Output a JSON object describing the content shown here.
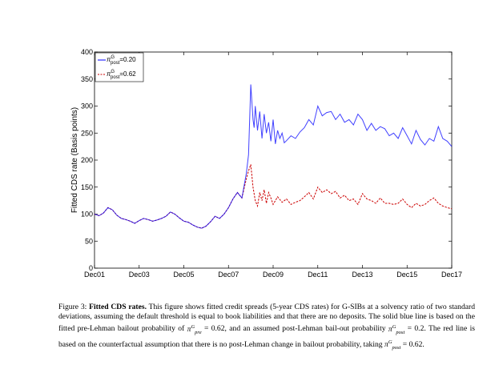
{
  "chart_data": {
    "type": "line",
    "title": "",
    "xlabel": "",
    "ylabel": "Fitted CDS rate (Basis points)",
    "xlim": [
      2001.0,
      2017.0
    ],
    "ylim": [
      0,
      400
    ],
    "yticks": [
      0,
      50,
      100,
      150,
      200,
      250,
      300,
      350,
      400
    ],
    "xtick_positions": [
      2001.0,
      2003.0,
      2005.0,
      2007.0,
      2009.0,
      2011.0,
      2013.0,
      2015.0,
      2017.0
    ],
    "xtick_labels": [
      "Dec01",
      "Dec03",
      "Dec05",
      "Dec07",
      "Dec09",
      "Dec11",
      "Dec13",
      "Dec15",
      "Dec17"
    ],
    "grid": false,
    "legend": "top-left",
    "series": [
      {
        "name": "π_post^G =0.20",
        "legend_pi": "π",
        "legend_sup": "G",
        "legend_sub": "post",
        "legend_val": "=0.20",
        "color": "#0000ff",
        "style": "solid",
        "x": [
          2001.0,
          2001.2,
          2001.4,
          2001.6,
          2001.8,
          2002.0,
          2002.2,
          2002.4,
          2002.6,
          2002.8,
          2003.0,
          2003.2,
          2003.4,
          2003.6,
          2003.8,
          2004.0,
          2004.2,
          2004.4,
          2004.6,
          2004.8,
          2005.0,
          2005.2,
          2005.4,
          2005.6,
          2005.8,
          2006.0,
          2006.2,
          2006.4,
          2006.6,
          2006.8,
          2007.0,
          2007.2,
          2007.4,
          2007.6,
          2007.8,
          2007.9,
          2008.0,
          2008.1,
          2008.15,
          2008.2,
          2008.3,
          2008.4,
          2008.5,
          2008.6,
          2008.7,
          2008.8,
          2008.9,
          2009.0,
          2009.1,
          2009.2,
          2009.3,
          2009.4,
          2009.5,
          2009.6,
          2009.8,
          2010.0,
          2010.2,
          2010.4,
          2010.6,
          2010.8,
          2011.0,
          2011.2,
          2011.4,
          2011.6,
          2011.8,
          2012.0,
          2012.2,
          2012.4,
          2012.6,
          2012.8,
          2013.0,
          2013.2,
          2013.4,
          2013.6,
          2013.8,
          2014.0,
          2014.2,
          2014.4,
          2014.6,
          2014.8,
          2015.0,
          2015.2,
          2015.4,
          2015.6,
          2015.8,
          2016.0,
          2016.2,
          2016.4,
          2016.6,
          2016.8,
          2017.0
        ],
        "y": [
          100,
          97,
          102,
          112,
          108,
          98,
          92,
          90,
          87,
          83,
          88,
          92,
          90,
          87,
          89,
          92,
          96,
          104,
          100,
          93,
          87,
          85,
          80,
          76,
          74,
          78,
          86,
          96,
          92,
          100,
          112,
          128,
          140,
          130,
          175,
          210,
          340,
          275,
          260,
          300,
          255,
          290,
          240,
          285,
          250,
          270,
          235,
          275,
          230,
          255,
          240,
          250,
          232,
          236,
          245,
          240,
          252,
          260,
          275,
          265,
          300,
          282,
          288,
          290,
          275,
          285,
          270,
          275,
          265,
          285,
          275,
          255,
          268,
          255,
          262,
          258,
          245,
          250,
          240,
          260,
          245,
          230,
          255,
          238,
          228,
          240,
          235,
          262,
          240,
          235,
          225
        ],
        "endpoint": [
          2017.0,
          225
        ]
      },
      {
        "name": "π_post^G =0.62",
        "legend_pi": "π",
        "legend_sup": "G",
        "legend_sub": "post",
        "legend_val": "=0.62",
        "color": "#cc0000",
        "style": "dashed",
        "x": [
          2001.0,
          2001.2,
          2001.4,
          2001.6,
          2001.8,
          2002.0,
          2002.2,
          2002.4,
          2002.6,
          2002.8,
          2003.0,
          2003.2,
          2003.4,
          2003.6,
          2003.8,
          2004.0,
          2004.2,
          2004.4,
          2004.6,
          2004.8,
          2005.0,
          2005.2,
          2005.4,
          2005.6,
          2005.8,
          2006.0,
          2006.2,
          2006.4,
          2006.6,
          2006.8,
          2007.0,
          2007.2,
          2007.4,
          2007.6,
          2007.8,
          2007.9,
          2008.0,
          2008.1,
          2008.2,
          2008.3,
          2008.4,
          2008.5,
          2008.6,
          2008.7,
          2008.8,
          2008.9,
          2009.0,
          2009.2,
          2009.4,
          2009.6,
          2009.8,
          2010.0,
          2010.2,
          2010.4,
          2010.6,
          2010.8,
          2011.0,
          2011.2,
          2011.4,
          2011.6,
          2011.8,
          2012.0,
          2012.2,
          2012.4,
          2012.6,
          2012.8,
          2013.0,
          2013.2,
          2013.4,
          2013.6,
          2013.8,
          2014.0,
          2014.2,
          2014.4,
          2014.6,
          2014.8,
          2015.0,
          2015.2,
          2015.4,
          2015.6,
          2015.8,
          2016.0,
          2016.2,
          2016.4,
          2016.6,
          2016.8,
          2017.0
        ],
        "y": [
          100,
          97,
          102,
          112,
          108,
          98,
          92,
          90,
          87,
          83,
          88,
          92,
          90,
          87,
          89,
          92,
          96,
          104,
          100,
          93,
          87,
          85,
          80,
          76,
          74,
          78,
          86,
          96,
          92,
          100,
          112,
          128,
          140,
          130,
          165,
          180,
          192,
          150,
          125,
          115,
          140,
          125,
          145,
          120,
          140,
          130,
          118,
          132,
          122,
          128,
          118,
          122,
          125,
          132,
          140,
          128,
          150,
          140,
          145,
          138,
          142,
          130,
          135,
          125,
          128,
          118,
          138,
          128,
          125,
          120,
          130,
          120,
          120,
          118,
          120,
          128,
          118,
          112,
          120,
          115,
          118,
          125,
          130,
          120,
          115,
          112,
          110
        ],
        "endpoint": [
          2017.0,
          110
        ]
      }
    ]
  },
  "caption": {
    "label": "Figure 3:",
    "title": "Fitted CDS rates.",
    "text1": "This figure shows fitted credit spreads (5-year CDS rates) for G-SIBs at a solvency ratio of two standard deviations, assuming the default threshold is equal to book liabilities and that there are no deposits. The solid blue line is based on the fitted pre-Lehman bailout probability of",
    "pi1_sub": "pre",
    "eq1": "= 0.62, and an assumed post-Lehman bail-out probability",
    "pi2_sub": "post",
    "eq2": "= 0.2. The red line is based on the counterfactual assumption that there is no post-Lehman change in bailout probability, taking",
    "pi3_sub": "post",
    "eq3": "= 0.62.",
    "pi": "π",
    "sup": "G"
  }
}
